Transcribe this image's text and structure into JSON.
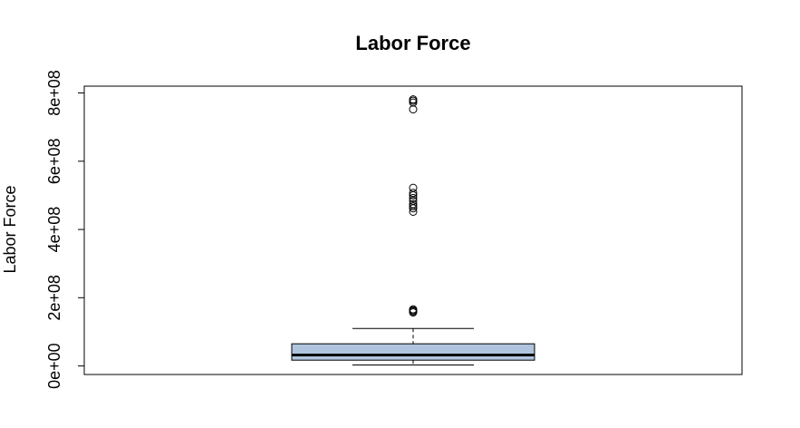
{
  "chart_data": {
    "type": "boxplot",
    "title": "Labor Force",
    "xlabel": "",
    "ylabel": "Labor Force",
    "ylim": [
      -25000000,
      820000000
    ],
    "yticks": [
      0,
      200000000,
      400000000,
      600000000,
      800000000
    ],
    "ytick_labels": [
      "0e+00",
      "2e+08",
      "4e+08",
      "6e+08",
      "8e+08"
    ],
    "grid": false,
    "legend": "none",
    "box": {
      "min": 3000000,
      "q1": 17000000,
      "median": 32000000,
      "q3": 65000000,
      "whisker_high": 110000000,
      "fill_color": "#b0c4de"
    },
    "outliers": [
      157000000,
      160000000,
      163000000,
      166000000,
      452000000,
      462000000,
      468000000,
      474000000,
      484000000,
      492000000,
      500000000,
      507000000,
      522000000,
      752000000,
      772000000,
      777000000,
      781000000
    ]
  }
}
